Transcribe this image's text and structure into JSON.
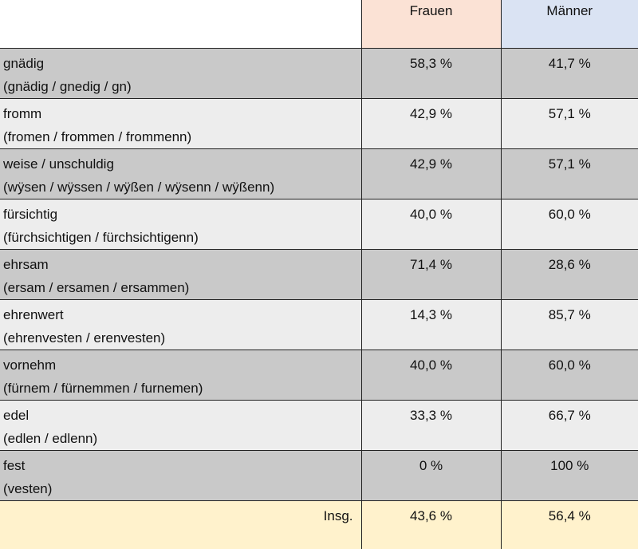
{
  "table": {
    "header": {
      "frauen": "Frauen",
      "maenner": "Männer"
    },
    "rows": [
      {
        "term": "gnädig",
        "variants": "(gnädig / gnedig / gn)",
        "frauen": "58,3 %",
        "maenner": "41,7 %"
      },
      {
        "term": "fromm",
        "variants": "(fromen / frommen / frommenn)",
        "frauen": "42,9 %",
        "maenner": "57,1 %"
      },
      {
        "term": "weise / unschuldig",
        "variants": "(wÿsen / wÿssen / wÿßen / wÿsenn / wÿßenn)",
        "frauen": "42,9 %",
        "maenner": "57,1 %"
      },
      {
        "term": "fürsichtig",
        "variants": "(fürchsichtigen / fürchsichtigenn)",
        "frauen": "40,0 %",
        "maenner": "60,0 %"
      },
      {
        "term": "ehrsam",
        "variants": "(ersam / ersamen / ersammen)",
        "frauen": "71,4 %",
        "maenner": "28,6 %"
      },
      {
        "term": "ehrenwert",
        "variants": "(ehrenvesten / erenvesten)",
        "frauen": "14,3 %",
        "maenner": "85,7 %"
      },
      {
        "term": "vornehm",
        "variants": "(fürnem / fürnemmen / furnemen)",
        "frauen": "40,0 %",
        "maenner": "60,0 %"
      },
      {
        "term": "edel",
        "variants": "(edlen / edlenn)",
        "frauen": "33,3 %",
        "maenner": "66,7 %"
      },
      {
        "term": "fest",
        "variants": "(vesten)",
        "frauen": "0 %",
        "maenner": "100 %"
      }
    ],
    "total": {
      "label": "Insg.",
      "frauen": "43,6 %",
      "maenner": "56,4 %"
    }
  }
}
